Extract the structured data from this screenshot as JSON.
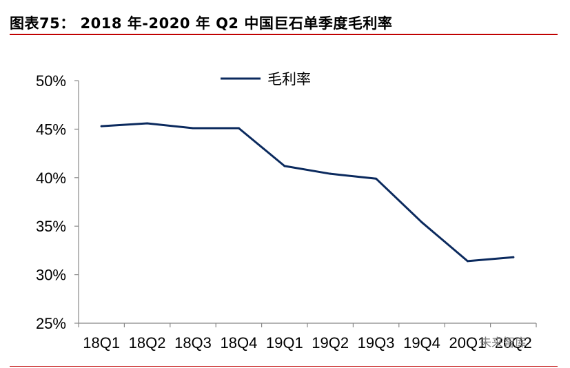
{
  "title": "图表75：  2018 年-2020 年 Q2 中国巨石单季度毛利率",
  "watermark": "未来智库",
  "chart_data": {
    "type": "line",
    "categories": [
      "18Q1",
      "18Q2",
      "18Q3",
      "18Q4",
      "19Q1",
      "19Q2",
      "19Q3",
      "19Q4",
      "20Q1",
      "20Q2"
    ],
    "series": [
      {
        "name": "毛利率",
        "values": [
          45.3,
          45.6,
          45.1,
          45.1,
          41.2,
          40.4,
          39.9,
          35.4,
          31.4,
          31.8
        ],
        "color": "#0b2a5e"
      }
    ],
    "ylim": [
      25,
      50
    ],
    "yticks": [
      25,
      30,
      35,
      40,
      45,
      50
    ],
    "ytick_labels": [
      "25%",
      "30%",
      "35%",
      "40%",
      "45%",
      "50%"
    ],
    "xlabel": "",
    "ylabel": "",
    "grid": false,
    "legend_position": "top-center"
  }
}
